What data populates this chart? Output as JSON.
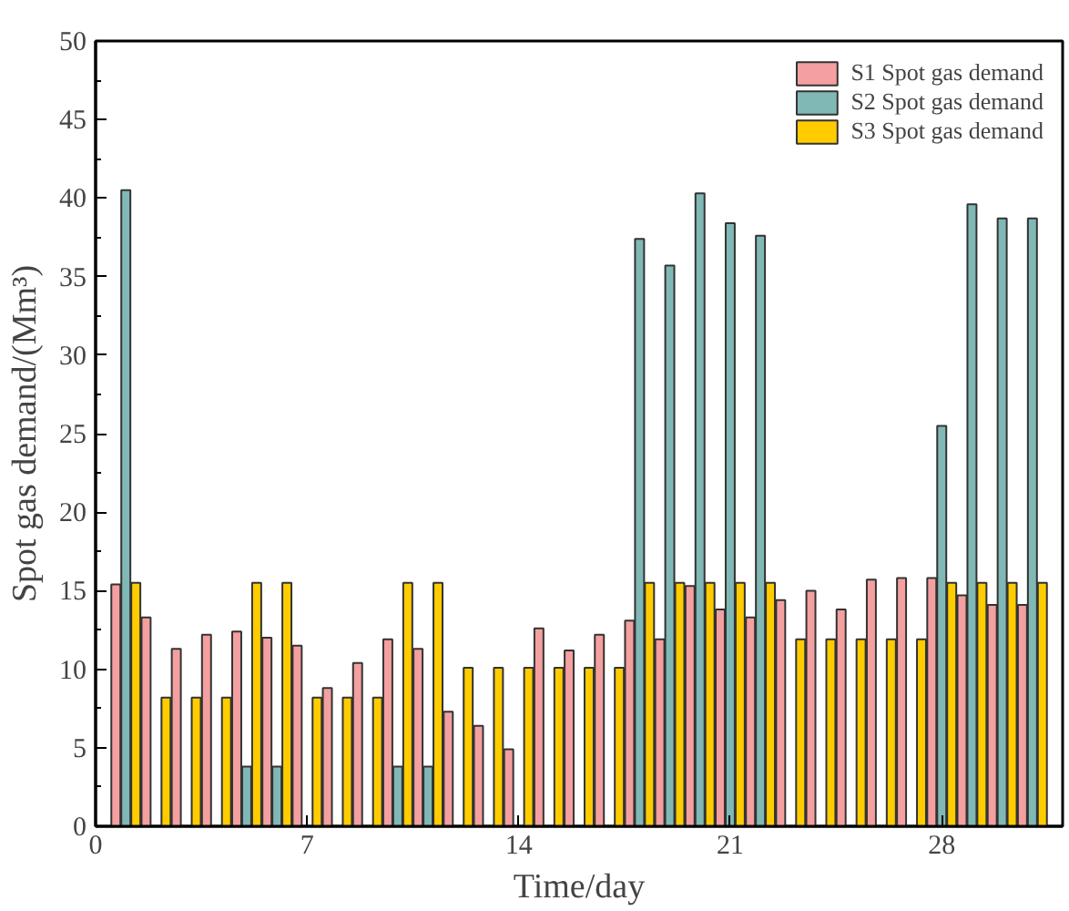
{
  "chart_data": {
    "type": "bar",
    "xlabel": "Time/day",
    "ylabel": "Spot gas demand/(Mm³)",
    "x": [
      1,
      2,
      3,
      4,
      5,
      6,
      7,
      8,
      9,
      10,
      11,
      12,
      13,
      14,
      15,
      16,
      17,
      18,
      19,
      20,
      21,
      22,
      23,
      24,
      25,
      26,
      27,
      28,
      29,
      30,
      31
    ],
    "series": [
      {
        "name": "S1 Spot gas demand",
        "color": "#f4a0a0",
        "values": [
          15.4,
          13.3,
          11.3,
          12.2,
          12.4,
          12.0,
          11.5,
          8.8,
          10.4,
          11.9,
          11.3,
          7.3,
          6.4,
          4.9,
          12.6,
          11.2,
          12.2,
          13.1,
          11.9,
          15.3,
          13.8,
          13.3,
          14.4,
          15.0,
          13.8,
          15.7,
          15.8,
          15.8,
          14.7,
          14.1,
          14.1
        ]
      },
      {
        "name": "S2 Spot gas demand",
        "color": "#80b8b5",
        "values": [
          40.5,
          null,
          null,
          null,
          3.8,
          3.8,
          null,
          null,
          null,
          3.8,
          3.8,
          null,
          null,
          null,
          null,
          null,
          null,
          37.4,
          35.7,
          40.3,
          38.4,
          37.6,
          null,
          null,
          null,
          null,
          null,
          25.5,
          39.6,
          38.7,
          38.7
        ]
      },
      {
        "name": "S3 Spot gas demand",
        "color": "#ffcc00",
        "values": [
          15.5,
          8.2,
          8.2,
          8.2,
          15.5,
          15.5,
          8.2,
          8.2,
          8.2,
          15.5,
          15.5,
          10.1,
          10.1,
          10.1,
          10.1,
          10.1,
          10.1,
          15.5,
          15.5,
          15.5,
          15.5,
          15.5,
          11.9,
          11.9,
          11.9,
          11.9,
          11.9,
          15.5,
          15.5,
          15.5,
          15.5
        ]
      }
    ],
    "xlim": [
      0,
      32
    ],
    "xticks": [
      0,
      7,
      14,
      21,
      28
    ],
    "ylim": [
      0,
      50
    ],
    "yticks": [
      0,
      5,
      10,
      15,
      20,
      25,
      30,
      35,
      40,
      45,
      50
    ],
    "grid": false,
    "legend": "top right"
  }
}
